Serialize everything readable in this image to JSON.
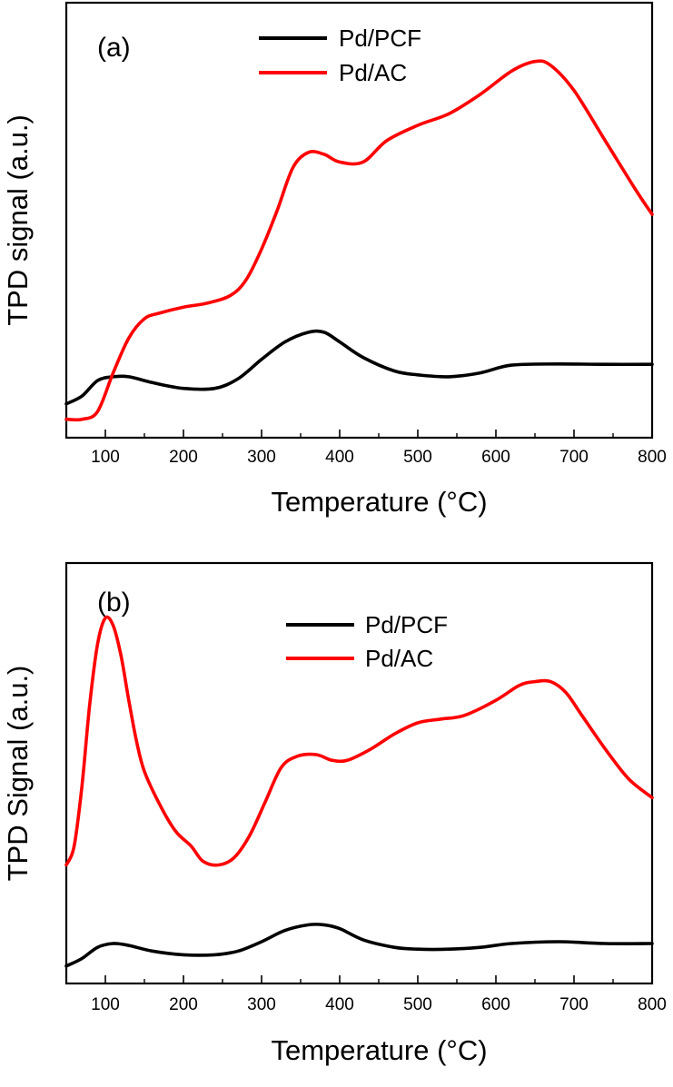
{
  "chart_data": [
    {
      "type": "line",
      "panel_label": "(a)",
      "xlabel": "Temperature (°C)",
      "ylabel": "TPD signal (a.u.)",
      "xlim": [
        50,
        800
      ],
      "ylim": [
        0,
        1
      ],
      "xticks": [
        100,
        200,
        300,
        400,
        500,
        600,
        700,
        800
      ],
      "y_tick_labels": "none",
      "legend_position": "top-center",
      "grid": false,
      "series": [
        {
          "name": "Pd/PCF",
          "color": "#000000",
          "x": [
            50,
            70,
            90,
            110,
            130,
            160,
            200,
            240,
            270,
            300,
            330,
            360,
            380,
            400,
            430,
            470,
            500,
            540,
            580,
            620,
            680,
            740,
            800
          ],
          "y": [
            0.05,
            0.07,
            0.11,
            0.12,
            0.12,
            0.105,
            0.09,
            0.09,
            0.115,
            0.165,
            0.21,
            0.235,
            0.235,
            0.21,
            0.17,
            0.135,
            0.125,
            0.12,
            0.13,
            0.15,
            0.153,
            0.152,
            0.152
          ]
        },
        {
          "name": "Pd/AC",
          "color": "#ff0000",
          "x": [
            50,
            70,
            90,
            110,
            130,
            150,
            170,
            200,
            230,
            260,
            280,
            300,
            320,
            340,
            360,
            380,
            400,
            430,
            460,
            500,
            540,
            580,
            620,
            650,
            670,
            700,
            740,
            780,
            800
          ],
          "y": [
            0.01,
            0.01,
            0.03,
            0.13,
            0.22,
            0.27,
            0.285,
            0.3,
            0.31,
            0.33,
            0.37,
            0.45,
            0.55,
            0.66,
            0.7,
            0.695,
            0.675,
            0.675,
            0.73,
            0.77,
            0.8,
            0.85,
            0.91,
            0.935,
            0.925,
            0.86,
            0.73,
            0.6,
            0.54
          ]
        }
      ]
    },
    {
      "type": "line",
      "panel_label": "(b)",
      "xlabel": "Temperature (°C)",
      "ylabel": "TPD Signal (a.u.)",
      "xlim": [
        50,
        800
      ],
      "ylim": [
        0,
        1
      ],
      "xticks": [
        100,
        200,
        300,
        400,
        500,
        600,
        700,
        800
      ],
      "y_tick_labels": "none",
      "legend_position": "top-center",
      "grid": false,
      "series": [
        {
          "name": "Pd/PCF",
          "color": "#000000",
          "x": [
            50,
            70,
            90,
            110,
            130,
            160,
            200,
            240,
            270,
            300,
            330,
            360,
            380,
            400,
            430,
            470,
            500,
            540,
            580,
            620,
            680,
            740,
            800
          ],
          "y": [
            0.02,
            0.04,
            0.07,
            0.08,
            0.075,
            0.06,
            0.05,
            0.05,
            0.06,
            0.085,
            0.115,
            0.13,
            0.13,
            0.12,
            0.09,
            0.07,
            0.065,
            0.065,
            0.07,
            0.08,
            0.085,
            0.08,
            0.08
          ]
        },
        {
          "name": "Pd/AC",
          "color": "#ff0000",
          "x": [
            50,
            60,
            70,
            80,
            90,
            100,
            110,
            120,
            130,
            140,
            150,
            170,
            190,
            210,
            225,
            245,
            265,
            285,
            305,
            325,
            345,
            370,
            390,
            410,
            440,
            470,
            500,
            530,
            560,
            600,
            630,
            650,
            670,
            690,
            710,
            740,
            770,
            800
          ],
          "y": [
            0.29,
            0.34,
            0.5,
            0.72,
            0.88,
            0.95,
            0.93,
            0.85,
            0.73,
            0.62,
            0.54,
            0.45,
            0.38,
            0.34,
            0.3,
            0.29,
            0.31,
            0.37,
            0.46,
            0.55,
            0.58,
            0.585,
            0.57,
            0.57,
            0.6,
            0.64,
            0.67,
            0.68,
            0.69,
            0.73,
            0.77,
            0.78,
            0.78,
            0.75,
            0.69,
            0.6,
            0.52,
            0.47
          ]
        }
      ]
    }
  ]
}
